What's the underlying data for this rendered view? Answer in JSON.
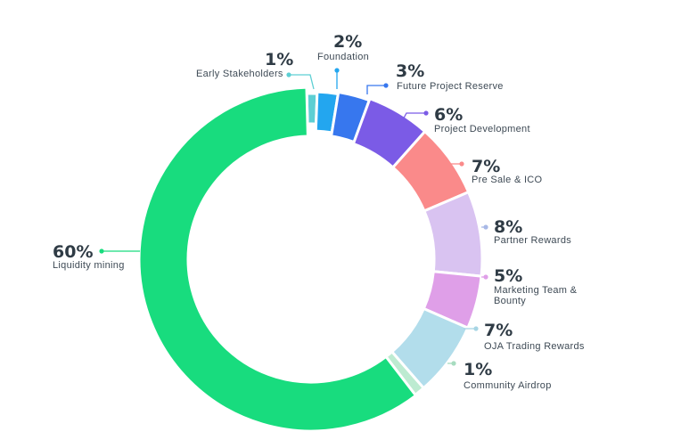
{
  "chart_data": {
    "type": "pie",
    "donut": true,
    "segments": [
      {
        "percent_label": "1%",
        "label": "Early Stakeholders",
        "value": 1,
        "color": "#5dcfd3"
      },
      {
        "percent_label": "2%",
        "label": "Foundation",
        "value": 2,
        "color": "#23a6ef"
      },
      {
        "percent_label": "3%",
        "label": "Future Project Reserve",
        "value": 3,
        "color": "#3777ee"
      },
      {
        "percent_label": "6%",
        "label": "Project Development",
        "value": 6,
        "color": "#7b5be6"
      },
      {
        "percent_label": "7%",
        "label": "Pre Sale & ICO",
        "value": 7,
        "color": "#fa8a8a"
      },
      {
        "percent_label": "8%",
        "label": "Partner Rewards",
        "value": 8,
        "color": "#d9c3f1"
      },
      {
        "percent_label": "5%",
        "label": "Marketing Team & Bounty",
        "value": 5,
        "color": "#df9fe8"
      },
      {
        "percent_label": "7%",
        "label": "OJA Trading Rewards",
        "value": 7,
        "color": "#b2ddeb"
      },
      {
        "percent_label": "1%",
        "label": "Community Airdrop",
        "value": 1,
        "color": "#bdebd1"
      },
      {
        "percent_label": "60%",
        "label": "Liquidity mining",
        "value": 60,
        "color": "#18dc7e"
      }
    ],
    "dot_colors": [
      "#5dcfd3",
      "#23a6ef",
      "#3777ee",
      "#7b5be6",
      "#fa8a8a",
      "#a8b8e6",
      "#df9fe8",
      "#a7d5e4",
      "#a7dcc0",
      "#18dc7e"
    ],
    "legend": "callouts"
  }
}
